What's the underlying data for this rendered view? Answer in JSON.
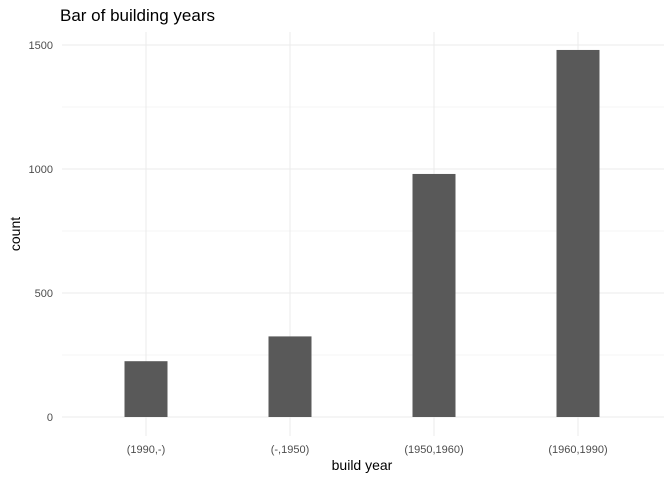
{
  "chart_data": {
    "type": "bar",
    "title": "Bar of building years",
    "xlabel": "build year",
    "ylabel": "count",
    "categories": [
      "(1990,-)",
      "(-,1950)",
      "(1950,1960)",
      "(1960,1990)"
    ],
    "values": [
      225,
      325,
      980,
      1480
    ],
    "ylim": [
      0,
      1500
    ],
    "yticks": [
      0,
      500,
      1000,
      1500
    ],
    "grid": true,
    "colors": {
      "bar": "#595959",
      "grid_major": "#ebebeb",
      "grid_minor": "#f2f2f2"
    }
  }
}
